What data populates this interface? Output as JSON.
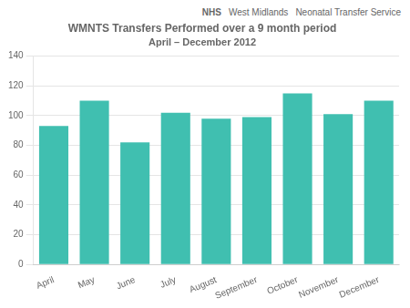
{
  "chart_data": {
    "type": "bar",
    "title": "WMNTS Transfers Performed over a 9 month period",
    "subtitle": "April – December 2012",
    "annotations": [
      "NHS",
      "West Midlands",
      "Neonatal Transfer Service"
    ],
    "categories": [
      "April",
      "May",
      "June",
      "July",
      "August",
      "September",
      "October",
      "November",
      "December"
    ],
    "values": [
      93,
      110,
      82,
      102,
      98,
      99,
      115,
      101,
      110
    ],
    "color": "#40bfb0",
    "ylim": [
      0,
      140
    ],
    "yticks": [
      0,
      20,
      40,
      60,
      80,
      100,
      120,
      140
    ],
    "grid": true
  }
}
